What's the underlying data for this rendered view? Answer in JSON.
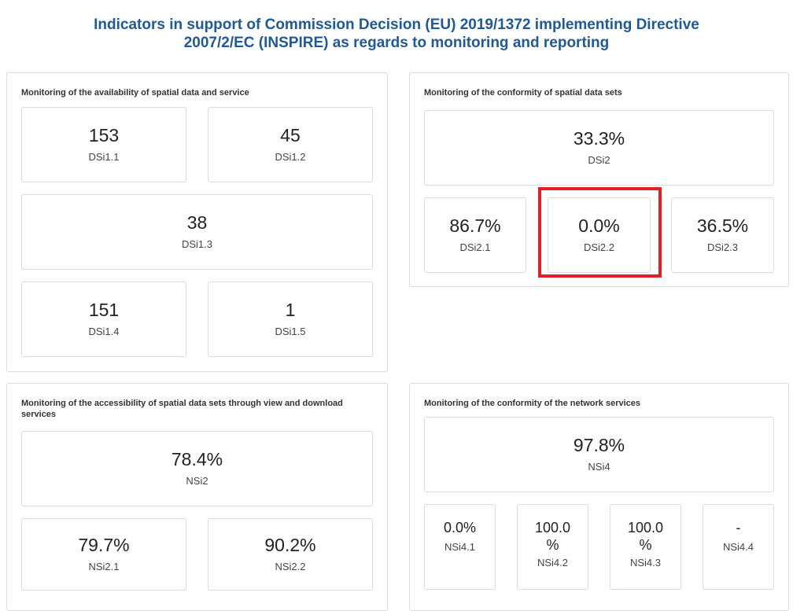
{
  "page": {
    "title_line1": "Indicators in support of Commission Decision (EU) 2019/1372 implementing Directive",
    "title_line2": "2007/2/EC (INSPIRE) as regards to monitoring and reporting"
  },
  "availability": {
    "title": "Monitoring of the availability of spatial data and service",
    "cards": [
      {
        "value": "153",
        "label": "DSi1.1"
      },
      {
        "value": "45",
        "label": "DSi1.2"
      },
      {
        "value": "38",
        "label": "DSi1.3"
      },
      {
        "value": "151",
        "label": "DSi1.4"
      },
      {
        "value": "1",
        "label": "DSi1.5"
      }
    ]
  },
  "conformity_datasets": {
    "title": "Monitoring of the conformity of spatial data sets",
    "main": {
      "value": "33.3%",
      "label": "DSi2"
    },
    "cards": [
      {
        "value": "86.7%",
        "label": "DSi2.1"
      },
      {
        "value": "0.0%",
        "label": "DSi2.2"
      },
      {
        "value": "36.5%",
        "label": "DSi2.3"
      }
    ]
  },
  "accessibility": {
    "title": "Monitoring of the accessibility of spatial data sets through view and download services",
    "main": {
      "value": "78.4%",
      "label": "NSi2"
    },
    "cards": [
      {
        "value": "79.7%",
        "label": "NSi2.1"
      },
      {
        "value": "90.2%",
        "label": "NSi2.2"
      }
    ]
  },
  "conformity_network": {
    "title": "Monitoring of the conformity of the network services",
    "main": {
      "value": "97.8%",
      "label": "NSi4"
    },
    "cards": [
      {
        "value": "0.0%",
        "label": "NSi4.1"
      },
      {
        "value_line1": "100.0",
        "value_line2": "%",
        "label": "NSi4.2"
      },
      {
        "value_line1": "100.0",
        "value_line2": "%",
        "label": "NSi4.3"
      },
      {
        "value": "-",
        "label": "NSi4.4"
      }
    ]
  },
  "highlight_color": "#e02025",
  "title_color": "#1f5a96"
}
